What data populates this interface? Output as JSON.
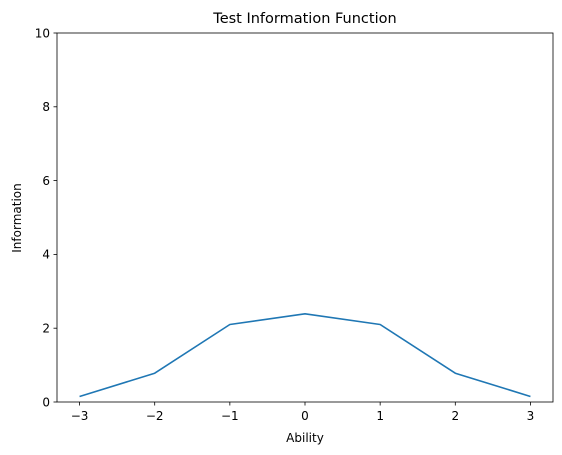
{
  "chart_data": {
    "type": "line",
    "title": "Test Information Function",
    "xlabel": "Ability",
    "ylabel": "Information",
    "xlim": [
      -3.3,
      3.3
    ],
    "ylim": [
      0,
      10
    ],
    "xticks": [
      -3,
      -2,
      -1,
      0,
      1,
      2,
      3
    ],
    "xtick_labels": [
      "−3",
      "−2",
      "−1",
      "0",
      "1",
      "2",
      "3"
    ],
    "yticks": [
      0,
      2,
      4,
      6,
      8,
      10
    ],
    "ytick_labels": [
      "0",
      "2",
      "4",
      "6",
      "8",
      "10"
    ],
    "grid": false,
    "series": [
      {
        "x": [
          -3,
          -2,
          -1,
          0,
          1,
          2,
          3
        ],
        "y": [
          0.15,
          0.78,
          2.1,
          2.39,
          2.1,
          0.78,
          0.15
        ],
        "color": "#1f77b4"
      }
    ]
  }
}
